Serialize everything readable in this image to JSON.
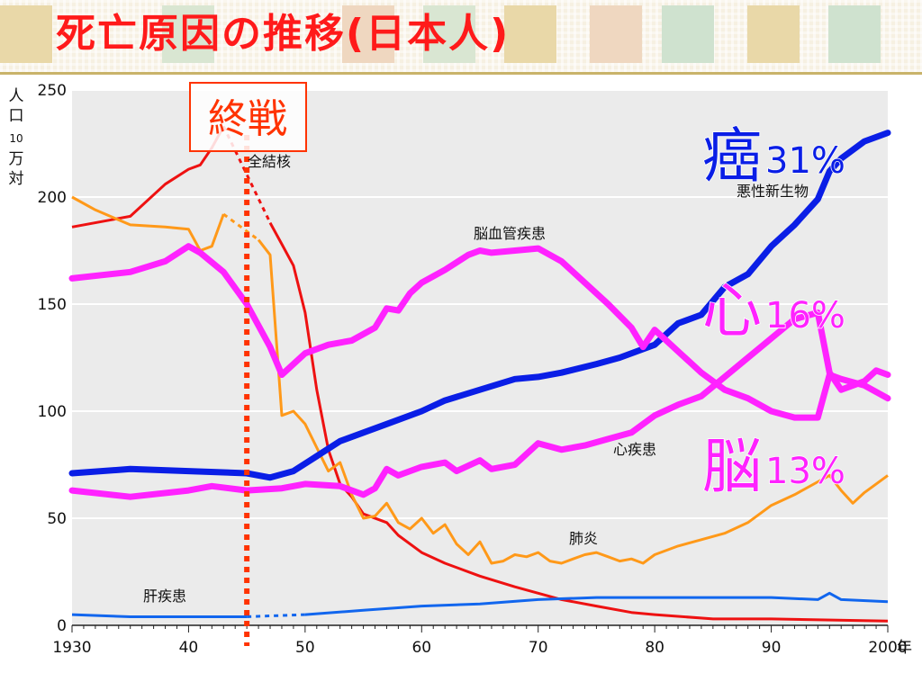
{
  "title": "死亡原因の推移(日本人)",
  "colors": {
    "tuberculosis": "#ee1111",
    "pneumonia": "#ff9919",
    "cerebrovascular": "#22bb33",
    "malignant": "#1188ee",
    "heart": "#2299ff",
    "liver": "#1166ee",
    "overlay_cancer": "#0a1ee6",
    "overlay_heart": "#ff22ff",
    "overlay_brain": "#ff22ff",
    "war_line": "#ff3300"
  },
  "chart_data": {
    "type": "line",
    "ylabel": "人口10万対",
    "ylim": [
      0,
      250
    ],
    "xlim": [
      1930,
      2000
    ],
    "y_ticks": [
      0,
      50,
      100,
      150,
      200,
      250
    ],
    "x_ticks": [
      {
        "value": 1930,
        "label": "1930"
      },
      {
        "value": 1940,
        "label": "40"
      },
      {
        "value": 1950,
        "label": "50"
      },
      {
        "value": 1960,
        "label": "60"
      },
      {
        "value": 1970,
        "label": "70"
      },
      {
        "value": 1980,
        "label": "80"
      },
      {
        "value": 1990,
        "label": "90"
      },
      {
        "value": 2000,
        "label": "2000"
      }
    ],
    "x_unit": "年",
    "grid": true,
    "series": [
      {
        "key": "tuberculosis",
        "name": "全結核",
        "points": [
          [
            1930,
            186
          ],
          [
            1935,
            191
          ],
          [
            1938,
            206
          ],
          [
            1940,
            213
          ],
          [
            1941,
            215
          ],
          [
            1942,
            223
          ],
          [
            1943,
            233
          ],
          [
            1947,
            188
          ],
          [
            1948,
            178
          ],
          [
            1949,
            168
          ],
          [
            1950,
            146
          ],
          [
            1951,
            110
          ],
          [
            1952,
            82
          ],
          [
            1953,
            66
          ],
          [
            1954,
            60
          ],
          [
            1955,
            52
          ],
          [
            1957,
            48
          ],
          [
            1958,
            42
          ],
          [
            1960,
            34
          ],
          [
            1962,
            29
          ],
          [
            1965,
            23
          ],
          [
            1968,
            18
          ],
          [
            1970,
            15
          ],
          [
            1972,
            12
          ],
          [
            1975,
            9
          ],
          [
            1978,
            6
          ],
          [
            1980,
            5
          ],
          [
            1985,
            3
          ],
          [
            1990,
            3
          ],
          [
            2000,
            2
          ]
        ]
      },
      {
        "key": "pneumonia",
        "name": "肺炎",
        "points": [
          [
            1930,
            200
          ],
          [
            1932,
            194
          ],
          [
            1935,
            187
          ],
          [
            1938,
            186
          ],
          [
            1940,
            185
          ],
          [
            1941,
            175
          ],
          [
            1942,
            177
          ],
          [
            1943,
            192
          ],
          [
            1946,
            180
          ],
          [
            1947,
            173
          ],
          [
            1948,
            98
          ],
          [
            1949,
            100
          ],
          [
            1950,
            94
          ],
          [
            1951,
            83
          ],
          [
            1952,
            72
          ],
          [
            1953,
            76
          ],
          [
            1954,
            61
          ],
          [
            1955,
            50
          ],
          [
            1956,
            51
          ],
          [
            1957,
            57
          ],
          [
            1958,
            48
          ],
          [
            1959,
            45
          ],
          [
            1960,
            50
          ],
          [
            1961,
            43
          ],
          [
            1962,
            47
          ],
          [
            1963,
            38
          ],
          [
            1964,
            33
          ],
          [
            1965,
            39
          ],
          [
            1966,
            29
          ],
          [
            1967,
            30
          ],
          [
            1968,
            33
          ],
          [
            1969,
            32
          ],
          [
            1970,
            34
          ],
          [
            1971,
            30
          ],
          [
            1972,
            29
          ],
          [
            1973,
            31
          ],
          [
            1974,
            33
          ],
          [
            1975,
            34
          ],
          [
            1976,
            32
          ],
          [
            1977,
            30
          ],
          [
            1978,
            31
          ],
          [
            1979,
            29
          ],
          [
            1980,
            33
          ],
          [
            1982,
            37
          ],
          [
            1984,
            40
          ],
          [
            1986,
            43
          ],
          [
            1988,
            48
          ],
          [
            1990,
            56
          ],
          [
            1992,
            61
          ],
          [
            1994,
            67
          ],
          [
            1995,
            70
          ],
          [
            1996,
            63
          ],
          [
            1997,
            57
          ],
          [
            1998,
            62
          ],
          [
            1999,
            66
          ],
          [
            2000,
            70
          ]
        ]
      },
      {
        "key": "cerebrovascular",
        "name": "脳血管疾患",
        "points": [
          [
            1930,
            162
          ],
          [
            1935,
            165
          ],
          [
            1938,
            170
          ],
          [
            1940,
            177
          ],
          [
            1941,
            174
          ],
          [
            1943,
            165
          ],
          [
            1945,
            150
          ],
          [
            1947,
            130
          ],
          [
            1948,
            117
          ],
          [
            1950,
            127
          ],
          [
            1952,
            131
          ],
          [
            1954,
            133
          ],
          [
            1956,
            139
          ],
          [
            1957,
            148
          ],
          [
            1958,
            147
          ],
          [
            1959,
            155
          ],
          [
            1960,
            160
          ],
          [
            1962,
            166
          ],
          [
            1964,
            173
          ],
          [
            1965,
            175
          ],
          [
            1966,
            174
          ],
          [
            1968,
            175
          ],
          [
            1970,
            176
          ],
          [
            1972,
            170
          ],
          [
            1974,
            160
          ],
          [
            1976,
            150
          ],
          [
            1978,
            139
          ],
          [
            1979,
            130
          ],
          [
            1980,
            138
          ],
          [
            1982,
            128
          ],
          [
            1984,
            118
          ],
          [
            1986,
            110
          ],
          [
            1988,
            106
          ],
          [
            1990,
            100
          ],
          [
            1992,
            97
          ],
          [
            1994,
            97
          ],
          [
            1995,
            117
          ],
          [
            1996,
            115
          ],
          [
            1998,
            112
          ],
          [
            2000,
            106
          ]
        ]
      },
      {
        "key": "malignant",
        "name": "悪性新生物",
        "points": [
          [
            1930,
            71
          ],
          [
            1935,
            73
          ],
          [
            1940,
            72
          ],
          [
            1945,
            71
          ],
          [
            1947,
            69
          ],
          [
            1949,
            72
          ],
          [
            1951,
            79
          ],
          [
            1953,
            86
          ],
          [
            1955,
            90
          ],
          [
            1957,
            94
          ],
          [
            1960,
            100
          ],
          [
            1962,
            105
          ],
          [
            1965,
            110
          ],
          [
            1968,
            115
          ],
          [
            1970,
            116
          ],
          [
            1972,
            118
          ],
          [
            1975,
            122
          ],
          [
            1977,
            125
          ],
          [
            1980,
            131
          ],
          [
            1982,
            141
          ],
          [
            1984,
            145
          ],
          [
            1986,
            158
          ],
          [
            1988,
            164
          ],
          [
            1990,
            177
          ],
          [
            1992,
            187
          ],
          [
            1994,
            199
          ],
          [
            1995,
            212
          ],
          [
            1996,
            218
          ],
          [
            1998,
            226
          ],
          [
            2000,
            230
          ]
        ]
      },
      {
        "key": "heart",
        "name": "心疾患",
        "points": [
          [
            1930,
            63
          ],
          [
            1935,
            60
          ],
          [
            1940,
            63
          ],
          [
            1942,
            65
          ],
          [
            1945,
            63
          ],
          [
            1948,
            64
          ],
          [
            1950,
            66
          ],
          [
            1953,
            65
          ],
          [
            1955,
            61
          ],
          [
            1956,
            64
          ],
          [
            1957,
            73
          ],
          [
            1958,
            70
          ],
          [
            1960,
            74
          ],
          [
            1962,
            76
          ],
          [
            1963,
            72
          ],
          [
            1965,
            77
          ],
          [
            1966,
            73
          ],
          [
            1968,
            75
          ],
          [
            1970,
            85
          ],
          [
            1972,
            82
          ],
          [
            1974,
            84
          ],
          [
            1976,
            87
          ],
          [
            1978,
            90
          ],
          [
            1980,
            98
          ],
          [
            1982,
            103
          ],
          [
            1984,
            107
          ],
          [
            1986,
            116
          ],
          [
            1988,
            125
          ],
          [
            1990,
            134
          ],
          [
            1992,
            143
          ],
          [
            1994,
            146
          ],
          [
            1995,
            118
          ],
          [
            1996,
            110
          ],
          [
            1998,
            114
          ],
          [
            1999,
            119
          ],
          [
            2000,
            117
          ]
        ]
      },
      {
        "key": "liver",
        "name": "肝疾患",
        "points": [
          [
            1930,
            5
          ],
          [
            1935,
            4
          ],
          [
            1940,
            4
          ],
          [
            1945,
            4
          ],
          [
            1950,
            5
          ],
          [
            1955,
            7
          ],
          [
            1960,
            9
          ],
          [
            1965,
            10
          ],
          [
            1970,
            12
          ],
          [
            1975,
            13
          ],
          [
            1980,
            13
          ],
          [
            1985,
            13
          ],
          [
            1990,
            13
          ],
          [
            1994,
            12
          ],
          [
            1995,
            15
          ],
          [
            1996,
            12
          ],
          [
            2000,
            11
          ]
        ]
      }
    ],
    "highlights": [
      {
        "key": "overlay_cancer",
        "for": "malignant",
        "glyph": "癌",
        "pct": "31%"
      },
      {
        "key": "overlay_heart",
        "for": "heart",
        "glyph": "心",
        "pct": "16%"
      },
      {
        "key": "overlay_brain",
        "for": "cerebrovascular",
        "glyph": "脳",
        "pct": "13%"
      }
    ],
    "annotation_war": {
      "label": "終戦",
      "year": 1945
    },
    "series_labels": [
      {
        "text": "全結核",
        "ref": "tuberculosis"
      },
      {
        "text": "悪性新生物",
        "ref": "malignant"
      },
      {
        "text": "脳血管疾患",
        "ref": "cerebrovascular"
      },
      {
        "text": "心疾患",
        "ref": "heart"
      },
      {
        "text": "肺炎",
        "ref": "pneumonia"
      },
      {
        "text": "肝疾患",
        "ref": "liver"
      }
    ]
  }
}
